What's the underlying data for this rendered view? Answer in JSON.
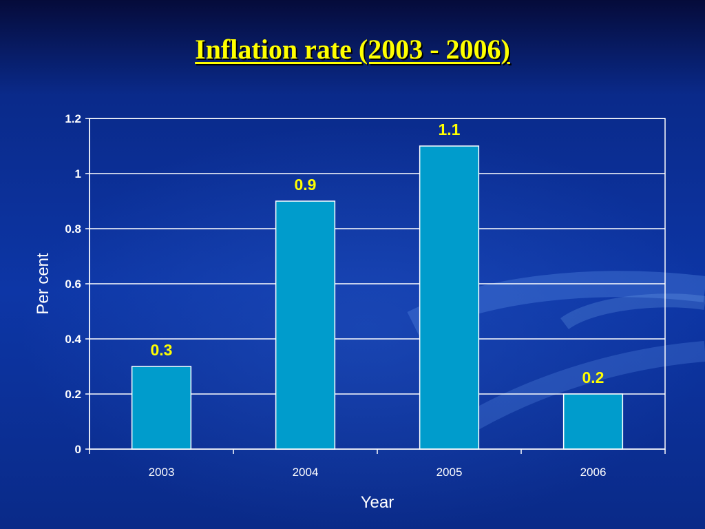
{
  "slide": {
    "title": "Inflation rate (2003 - 2006)"
  },
  "colors": {
    "background": "#0d36a6",
    "title": "#ffff00",
    "bar_fill": "#009ccc",
    "bar_stroke": "#ffffff",
    "data_label": "#ffff00",
    "axis_text": "#ffffff",
    "gridline": "#ffffff"
  },
  "chart_data": {
    "type": "bar",
    "categories": [
      "2003",
      "2004",
      "2005",
      "2006"
    ],
    "values": [
      0.3,
      0.9,
      1.1,
      0.2
    ],
    "data_labels": [
      "0.3",
      "0.9",
      "1.1",
      "0.2"
    ],
    "xlabel": "Year",
    "ylabel": "Per cent",
    "ylim": [
      0,
      1.2
    ],
    "yticks": [
      0,
      0.2,
      0.4,
      0.6,
      0.8,
      1,
      1.2
    ],
    "ytick_labels": [
      "0",
      "0.2",
      "0.4",
      "0.6",
      "0.8",
      "1",
      "1.2"
    ],
    "grid": true,
    "legend": "none"
  }
}
